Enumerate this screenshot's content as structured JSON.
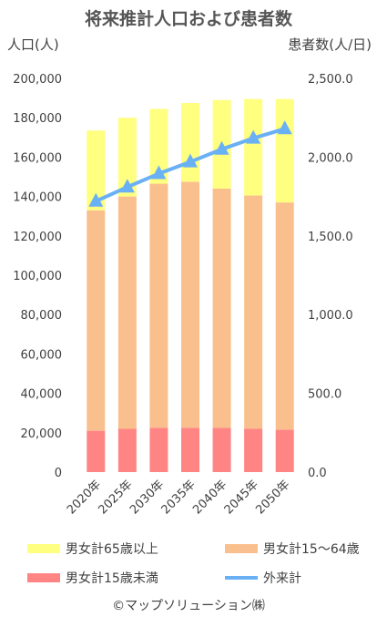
{
  "chart_data": {
    "type": "bar",
    "title": "将来推計人口および患者数",
    "ylabel_left": "人口(人)",
    "ylabel_right": "患者数(人/日)",
    "categories": [
      "2020年",
      "2025年",
      "2030年",
      "2035年",
      "2040年",
      "2045年",
      "2050年"
    ],
    "ylim_left": [
      0,
      200000
    ],
    "yticks_left": [
      "0",
      "20,000",
      "40,000",
      "60,000",
      "80,000",
      "100,000",
      "120,000",
      "140,000",
      "160,000",
      "180,000",
      "200,000"
    ],
    "ylim_right": [
      0,
      2500
    ],
    "yticks_right": [
      "0.0",
      "500.0",
      "1,000.0",
      "1,500.0",
      "2,000.0",
      "2,500.0"
    ],
    "stacked_series": [
      {
        "name": "男女計15歳未満",
        "color": "#ff8585",
        "values": [
          21000,
          22000,
          22500,
          22500,
          22500,
          22000,
          21500
        ]
      },
      {
        "name": "男女計15〜64歳",
        "color": "#f9c08e",
        "values": [
          112000,
          118000,
          124000,
          125000,
          121500,
          118500,
          115500
        ]
      },
      {
        "name": "男女計65歳以上",
        "color": "#ffff80",
        "values": [
          40500,
          40000,
          38000,
          40000,
          45000,
          49000,
          52500
        ]
      }
    ],
    "line_series": {
      "name": "外来計",
      "color": "#6ab0f5",
      "axis": "right",
      "values": [
        1720,
        1810,
        1895,
        1970,
        2050,
        2120,
        2180
      ]
    },
    "grid": false,
    "legend_position": "bottom"
  },
  "legend": [
    {
      "label": "男女計65歳以上",
      "color": "#ffff80"
    },
    {
      "label": "男女計15〜64歳",
      "color": "#f9c08e"
    },
    {
      "label": "男女計15歳未満",
      "color": "#ff8585"
    },
    {
      "label": "外来計",
      "color": "#6ab0f5"
    }
  ],
  "credit": "©マップソリューション㈱"
}
